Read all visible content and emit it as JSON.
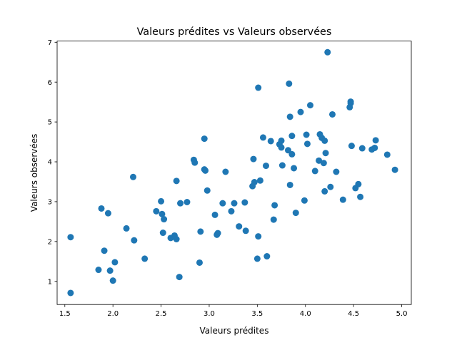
{
  "chart_data": {
    "type": "scatter",
    "title": "Valeurs prédites vs Valeurs observées",
    "xlabel": "Valeurs prédites",
    "ylabel": "Valeurs observées",
    "xlim": [
      1.42,
      5.1
    ],
    "ylim": [
      0.42,
      7.03
    ],
    "xticks": [
      1.5,
      2.0,
      2.5,
      3.0,
      3.5,
      4.0,
      4.5,
      5.0
    ],
    "xtick_labels": [
      "1.5",
      "2.0",
      "2.5",
      "3.0",
      "3.5",
      "4.0",
      "4.5",
      "5.0"
    ],
    "yticks": [
      1,
      2,
      3,
      4,
      5,
      6,
      7
    ],
    "ytick_labels": [
      "1",
      "2",
      "3",
      "4",
      "5",
      "6",
      "7"
    ],
    "grid": false,
    "marker_color": "#1f77b4",
    "points": [
      [
        1.56,
        0.71
      ],
      [
        1.56,
        2.11
      ],
      [
        1.85,
        1.29
      ],
      [
        1.88,
        2.83
      ],
      [
        1.91,
        1.77
      ],
      [
        1.95,
        2.71
      ],
      [
        1.97,
        1.27
      ],
      [
        2.0,
        1.02
      ],
      [
        2.02,
        1.48
      ],
      [
        2.14,
        2.33
      ],
      [
        2.21,
        3.62
      ],
      [
        2.22,
        2.03
      ],
      [
        2.33,
        1.57
      ],
      [
        2.45,
        2.76
      ],
      [
        2.5,
        3.01
      ],
      [
        2.51,
        2.69
      ],
      [
        2.52,
        2.22
      ],
      [
        2.53,
        2.56
      ],
      [
        2.6,
        2.09
      ],
      [
        2.64,
        2.15
      ],
      [
        2.66,
        2.06
      ],
      [
        2.66,
        3.52
      ],
      [
        2.69,
        1.11
      ],
      [
        2.7,
        2.96
      ],
      [
        2.77,
        2.99
      ],
      [
        2.84,
        4.05
      ],
      [
        2.85,
        3.98
      ],
      [
        2.9,
        1.47
      ],
      [
        2.91,
        2.25
      ],
      [
        2.95,
        3.81
      ],
      [
        2.95,
        4.58
      ],
      [
        2.96,
        3.78
      ],
      [
        2.98,
        3.28
      ],
      [
        3.06,
        2.67
      ],
      [
        3.08,
        2.17
      ],
      [
        3.09,
        2.21
      ],
      [
        3.14,
        2.96
      ],
      [
        3.17,
        3.75
      ],
      [
        3.23,
        2.76
      ],
      [
        3.26,
        2.96
      ],
      [
        3.31,
        2.38
      ],
      [
        3.37,
        2.98
      ],
      [
        3.38,
        2.27
      ],
      [
        3.45,
        3.39
      ],
      [
        3.46,
        4.07
      ],
      [
        3.47,
        3.49
      ],
      [
        3.5,
        1.57
      ],
      [
        3.51,
        2.13
      ],
      [
        3.51,
        5.86
      ],
      [
        3.53,
        3.53
      ],
      [
        3.56,
        4.61
      ],
      [
        3.59,
        3.9
      ],
      [
        3.6,
        1.63
      ],
      [
        3.64,
        4.52
      ],
      [
        3.67,
        2.55
      ],
      [
        3.68,
        2.91
      ],
      [
        3.73,
        4.44
      ],
      [
        3.75,
        4.36
      ],
      [
        3.75,
        4.53
      ],
      [
        3.76,
        3.91
      ],
      [
        3.82,
        4.29
      ],
      [
        3.83,
        5.96
      ],
      [
        3.84,
        5.13
      ],
      [
        3.84,
        3.42
      ],
      [
        3.86,
        4.19
      ],
      [
        3.86,
        4.65
      ],
      [
        3.88,
        3.84
      ],
      [
        3.9,
        2.72
      ],
      [
        3.95,
        5.25
      ],
      [
        3.99,
        3.03
      ],
      [
        4.01,
        4.68
      ],
      [
        4.02,
        4.45
      ],
      [
        4.05,
        5.42
      ],
      [
        4.1,
        3.77
      ],
      [
        4.14,
        4.03
      ],
      [
        4.15,
        4.69
      ],
      [
        4.17,
        4.6
      ],
      [
        4.19,
        3.97
      ],
      [
        4.2,
        4.53
      ],
      [
        4.2,
        3.26
      ],
      [
        4.21,
        4.22
      ],
      [
        4.23,
        6.75
      ],
      [
        4.26,
        3.37
      ],
      [
        4.28,
        5.19
      ],
      [
        4.32,
        3.75
      ],
      [
        4.39,
        3.05
      ],
      [
        4.46,
        5.37
      ],
      [
        4.47,
        5.51
      ],
      [
        4.47,
        5.47
      ],
      [
        4.48,
        4.4
      ],
      [
        4.52,
        3.34
      ],
      [
        4.55,
        3.44
      ],
      [
        4.57,
        3.12
      ],
      [
        4.59,
        4.34
      ],
      [
        4.69,
        4.31
      ],
      [
        4.72,
        4.35
      ],
      [
        4.73,
        4.54
      ],
      [
        4.85,
        4.18
      ],
      [
        4.93,
        3.8
      ]
    ]
  }
}
